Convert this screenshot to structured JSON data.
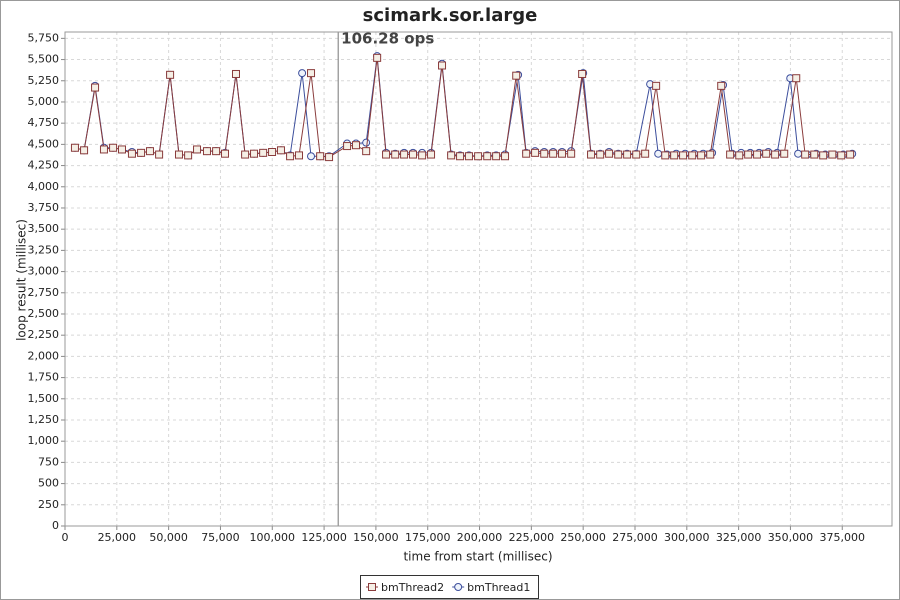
{
  "chart_data": {
    "type": "line",
    "title": "scimark.sor.large",
    "x_label": "time from start (millisec)",
    "y_label": "loop result (millisec)",
    "annotation": {
      "x": 131800,
      "label": "106.28 ops"
    },
    "xlim": [
      0,
      399000
    ],
    "ylim": [
      0,
      5825
    ],
    "grid": true,
    "xticks": [
      0,
      {
        "value": 25000,
        "label": "25,000"
      },
      {
        "value": 50000,
        "label": "50,000"
      },
      {
        "value": 75000,
        "label": "75,000"
      },
      {
        "value": 100000,
        "label": "100,000"
      },
      {
        "value": 125000,
        "label": "125,000"
      },
      {
        "value": 150000,
        "label": "150,000"
      },
      {
        "value": 175000,
        "label": "175,000"
      },
      {
        "value": 200000,
        "label": "200,000"
      },
      {
        "value": 225000,
        "label": "225,000"
      },
      {
        "value": 250000,
        "label": "250,000"
      },
      {
        "value": 275000,
        "label": "275,000"
      },
      {
        "value": 300000,
        "label": "300,000"
      },
      {
        "value": 325000,
        "label": "325,000"
      },
      {
        "value": 350000,
        "label": "350,000"
      },
      {
        "value": 375000,
        "label": "375,000"
      }
    ],
    "yticks": [
      0,
      250,
      500,
      750,
      {
        "value": 1000,
        "label": "1,000"
      },
      {
        "value": 1250,
        "label": "1,250"
      },
      {
        "value": 1500,
        "label": "1,500"
      },
      {
        "value": 1750,
        "label": "1,750"
      },
      {
        "value": 2000,
        "label": "2,000"
      },
      {
        "value": 2250,
        "label": "2,250"
      },
      {
        "value": 2500,
        "label": "2,500"
      },
      {
        "value": 2750,
        "label": "2,750"
      },
      {
        "value": 3000,
        "label": "3,000"
      },
      {
        "value": 3250,
        "label": "3,250"
      },
      {
        "value": 3500,
        "label": "3,500"
      },
      {
        "value": 3750,
        "label": "3,750"
      },
      {
        "value": 4000,
        "label": "4,000"
      },
      {
        "value": 4250,
        "label": "4,250"
      },
      {
        "value": 4500,
        "label": "4,500"
      },
      {
        "value": 4750,
        "label": "4,750"
      },
      {
        "value": 5000,
        "label": "5,000"
      },
      {
        "value": 5250,
        "label": "5,250"
      },
      {
        "value": 5500,
        "label": "5,500"
      },
      {
        "value": 5750,
        "label": "5,750"
      }
    ],
    "series": [
      {
        "name": "bmThread2",
        "color": "#8a3c3c",
        "marker": "square",
        "x": [
          4800,
          9200,
          14500,
          18800,
          23200,
          27500,
          32300,
          36700,
          41000,
          45400,
          50700,
          55000,
          59400,
          63700,
          68500,
          72900,
          77200,
          82500,
          86900,
          91200,
          95600,
          99900,
          104200,
          108600,
          112900,
          118700,
          123100,
          127400,
          136100,
          140400,
          145300,
          150600,
          154900,
          159300,
          163600,
          167900,
          172300,
          176600,
          181900,
          186300,
          190600,
          194900,
          199300,
          203700,
          208000,
          212300,
          217700,
          222500,
          226800,
          231200,
          235500,
          239800,
          244200,
          249500,
          253800,
          258200,
          262500,
          266900,
          271200,
          275600,
          279900,
          285200,
          289600,
          293900,
          298200,
          302600,
          306900,
          311300,
          316600,
          320900,
          325300,
          329600,
          333900,
          338300,
          342600,
          347000,
          352800,
          357100,
          361500,
          365800,
          370200,
          374500,
          378800
        ],
        "values": [
          4460,
          4430,
          5170,
          4440,
          4460,
          4440,
          4390,
          4400,
          4420,
          4380,
          5320,
          4380,
          4370,
          4440,
          4420,
          4420,
          4390,
          5330,
          4380,
          4390,
          4400,
          4410,
          4430,
          4360,
          4370,
          5340,
          4360,
          4350,
          4480,
          4490,
          4420,
          5520,
          4380,
          4380,
          4380,
          4380,
          4370,
          4380,
          5430,
          4370,
          4360,
          4360,
          4360,
          4360,
          4360,
          4360,
          5310,
          4390,
          4400,
          4390,
          4390,
          4390,
          4390,
          5330,
          4380,
          4380,
          4390,
          4380,
          4380,
          4380,
          4390,
          5190,
          4370,
          4370,
          4370,
          4370,
          4370,
          4380,
          5190,
          4380,
          4370,
          4380,
          4380,
          4390,
          4380,
          4390,
          5280,
          4380,
          4380,
          4370,
          4380,
          4370,
          4380
        ]
      },
      {
        "name": "bmThread1",
        "color": "#3c4e9c",
        "marker": "circle",
        "x": [
          4800,
          9200,
          14500,
          18800,
          23200,
          27500,
          32300,
          36700,
          41000,
          45400,
          50700,
          55000,
          59400,
          63700,
          68500,
          72900,
          77200,
          82500,
          86900,
          91200,
          95600,
          99900,
          104200,
          108600,
          114400,
          118700,
          123100,
          127400,
          136100,
          140400,
          145300,
          150600,
          154900,
          159300,
          163600,
          167900,
          172300,
          176600,
          181900,
          186300,
          190600,
          194900,
          199300,
          203700,
          208000,
          212300,
          218600,
          222500,
          226800,
          231200,
          235500,
          239800,
          244200,
          250000,
          253800,
          258200,
          262500,
          266900,
          271200,
          275600,
          282300,
          286200,
          290500,
          294900,
          299200,
          303600,
          307900,
          312200,
          317500,
          321900,
          326200,
          330600,
          334900,
          339300,
          343600,
          349900,
          353700,
          358100,
          362400,
          366800,
          371100,
          375500,
          379800
        ],
        "values": [
          4460,
          4430,
          5190,
          4460,
          4460,
          4440,
          4410,
          4400,
          4420,
          4380,
          5320,
          4380,
          4370,
          4440,
          4420,
          4420,
          4400,
          5330,
          4380,
          4390,
          4400,
          4410,
          4430,
          4370,
          5340,
          4360,
          4360,
          4360,
          4510,
          4510,
          4520,
          5540,
          4400,
          4390,
          4400,
          4400,
          4400,
          4400,
          5450,
          4380,
          4370,
          4370,
          4360,
          4370,
          4370,
          4380,
          5320,
          4400,
          4420,
          4410,
          4410,
          4410,
          4420,
          5340,
          4390,
          4390,
          4410,
          4390,
          4390,
          4390,
          5210,
          4390,
          4380,
          4390,
          4390,
          4390,
          4390,
          4400,
          5200,
          4390,
          4400,
          4400,
          4400,
          4410,
          4400,
          5280,
          4390,
          4380,
          4390,
          4380,
          4380,
          4380,
          4390
        ]
      }
    ]
  }
}
